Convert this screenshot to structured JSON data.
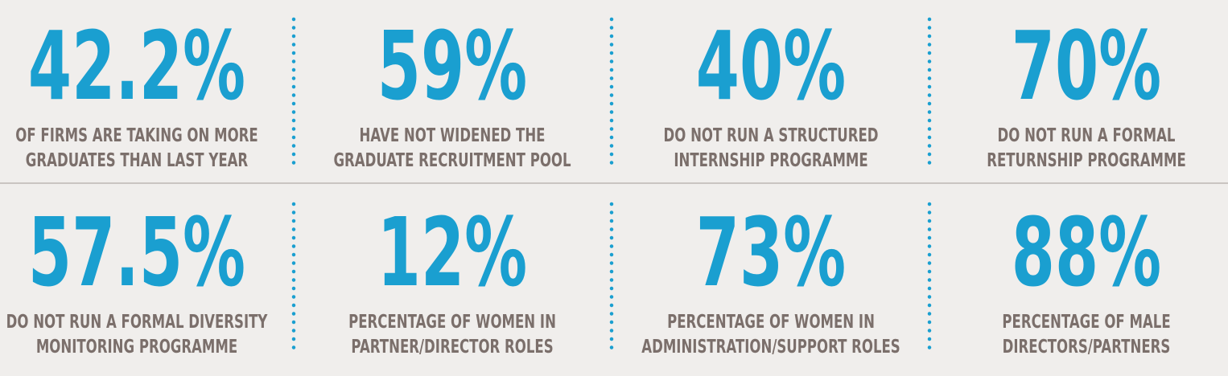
{
  "rows": [
    [
      {
        "stat": "42.2%",
        "lines": [
          "OF FIRMS ARE TAKING ON MORE",
          "GRADUATES THAN LAST YEAR"
        ]
      },
      {
        "stat": "59%",
        "lines": [
          "HAVE NOT WIDENED THE",
          "GRADUATE RECRUITMENT POOL"
        ]
      },
      {
        "stat": "40%",
        "lines": [
          "DO NOT RUN A STRUCTURED",
          "INTERNSHIP PROGRAMME"
        ]
      },
      {
        "stat": "70%",
        "lines": [
          "DO NOT RUN A FORMAL",
          "RETURNSHIP PROGRAMME"
        ]
      }
    ],
    [
      {
        "stat": "57.5%",
        "lines": [
          "DO NOT RUN A FORMAL DIVERSITY",
          "MONITORING PROGRAMME"
        ]
      },
      {
        "stat": "12%",
        "lines": [
          "PERCENTAGE OF WOMEN IN",
          "PARTNER/DIRECTOR ROLES"
        ]
      },
      {
        "stat": "73%",
        "lines": [
          "PERCENTAGE OF WOMEN IN",
          "ADMINISTRATION/SUPPORT ROLES"
        ]
      },
      {
        "stat": "88%",
        "lines": [
          "PERCENTAGE OF MALE",
          "DIRECTORS/PARTNERS"
        ]
      }
    ]
  ]
}
